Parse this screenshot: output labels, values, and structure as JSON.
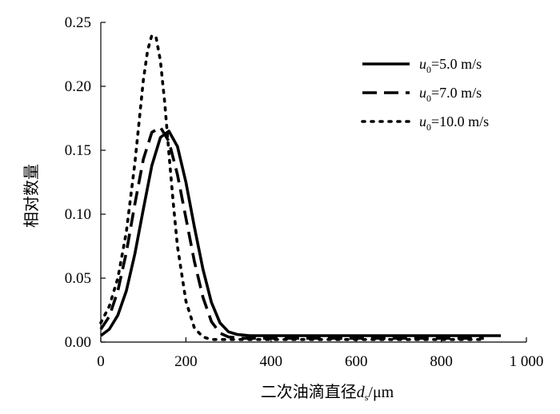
{
  "chart_data": {
    "type": "line",
    "xlabel_prefix": "二次油滴直径",
    "xlabel_var": "d",
    "xlabel_sub": "s",
    "xlabel_unit": "/μm",
    "ylabel": "相对数量",
    "xlim": [
      0,
      1000
    ],
    "ylim": [
      0,
      0.25
    ],
    "xticks": [
      0,
      200,
      400,
      600,
      800,
      1000
    ],
    "xtick_labels": [
      "0",
      "200",
      "400",
      "600",
      "800",
      "1 000"
    ],
    "yticks": [
      0,
      0.05,
      0.1,
      0.15,
      0.2,
      0.25
    ],
    "ytick_labels": [
      "0.00",
      "0.05",
      "0.10",
      "0.15",
      "0.20",
      "0.25"
    ],
    "grid": false,
    "legend_position": "top-right",
    "series": [
      {
        "legend_var": "u",
        "legend_sub": "0",
        "legend_value": "=5.0 m/s",
        "line_style": "solid",
        "color": "#000000",
        "x": [
          0,
          20,
          40,
          60,
          80,
          100,
          120,
          140,
          160,
          180,
          200,
          220,
          240,
          260,
          280,
          300,
          320,
          350,
          400,
          500,
          600,
          700,
          800,
          900,
          940
        ],
        "y": [
          0.005,
          0.01,
          0.021,
          0.04,
          0.069,
          0.104,
          0.138,
          0.16,
          0.165,
          0.153,
          0.125,
          0.09,
          0.057,
          0.031,
          0.015,
          0.008,
          0.006,
          0.005,
          0.005,
          0.005,
          0.005,
          0.005,
          0.005,
          0.005,
          0.005
        ]
      },
      {
        "legend_var": "u",
        "legend_sub": "0",
        "legend_value": "=7.0 m/s",
        "line_style": "dashed",
        "color": "#000000",
        "x": [
          0,
          20,
          40,
          60,
          80,
          100,
          120,
          140,
          160,
          180,
          200,
          220,
          240,
          260,
          280,
          300,
          330,
          400,
          500,
          600,
          700,
          800,
          900
        ],
        "y": [
          0.01,
          0.02,
          0.04,
          0.07,
          0.108,
          0.143,
          0.164,
          0.168,
          0.157,
          0.131,
          0.097,
          0.063,
          0.035,
          0.016,
          0.007,
          0.004,
          0.003,
          0.003,
          0.003,
          0.003,
          0.003,
          0.003,
          0.003
        ]
      },
      {
        "legend_var": "u",
        "legend_sub": "0",
        "legend_value": "=10.0 m/s",
        "line_style": "dotted",
        "color": "#000000",
        "x": [
          0,
          20,
          40,
          60,
          80,
          100,
          110,
          120,
          130,
          140,
          150,
          160,
          170,
          180,
          200,
          220,
          240,
          260,
          280,
          300,
          350,
          400,
          500,
          600,
          700,
          800,
          900
        ],
        "y": [
          0.015,
          0.028,
          0.05,
          0.086,
          0.14,
          0.205,
          0.228,
          0.24,
          0.238,
          0.22,
          0.188,
          0.148,
          0.11,
          0.075,
          0.032,
          0.011,
          0.004,
          0.002,
          0.002,
          0.002,
          0.002,
          0.002,
          0.002,
          0.002,
          0.002,
          0.002,
          0.002
        ]
      }
    ]
  }
}
